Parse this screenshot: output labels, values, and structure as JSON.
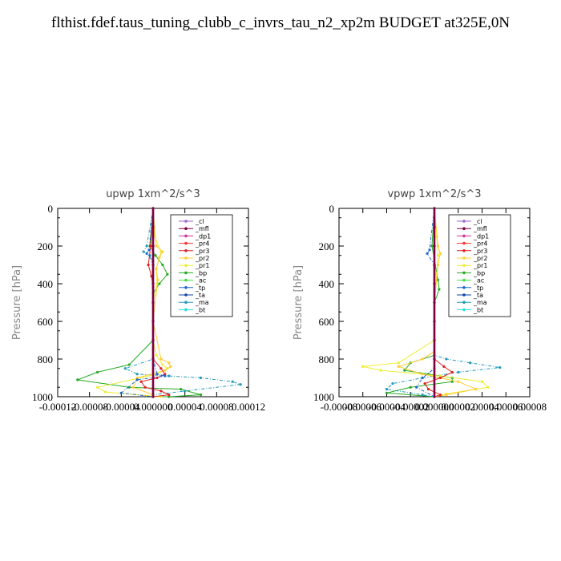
{
  "title": "flthist.fdef.taus_tuning_clubb_c_invrs_tau_n2_xp2m  BUDGET at325E,0N",
  "legend_labels": [
    "_cl",
    "_mfl",
    "_dp1",
    "_pr4",
    "_pr3",
    "_pr2",
    "_pr1",
    "_bp",
    "_ac",
    "_tp",
    "_ta",
    "_ma",
    "_bt"
  ],
  "series_colors": {
    "_cl": "#9966cc",
    "_mfl": "#800040",
    "_dp1": "#cc3399",
    "_pr4": "#ff3333",
    "_pr3": "#dd2222",
    "_pr2": "#ffcc33",
    "_pr1": "#eeee33",
    "_bp": "#22aa22",
    "_ac": "#44dd44",
    "_tp": "#2266cc",
    "_ta": "#1144aa",
    "_ma": "#2299bb",
    "_bt": "#22dddd"
  },
  "chart_data": [
    {
      "type": "line",
      "title": "upwp   1xm^2/s^3",
      "ylabel": "Pressure [hPa]",
      "xlim": [
        -0.00012,
        0.00012
      ],
      "ylim": [
        1000,
        0
      ],
      "y_inverted": true,
      "xticks": [
        -0.00012,
        -8e-05,
        -4e-05,
        0.0,
        4e-05,
        8e-05,
        0.00012
      ],
      "xtick_labels": [
        "-0.00012",
        "-0.00008",
        "-0.00004",
        "0.000000",
        "0.00004",
        "0.00008",
        "0.00012"
      ],
      "yticks": [
        0,
        200,
        400,
        600,
        800,
        1000
      ],
      "ytick_labels": [
        "0",
        "200",
        "400",
        "600",
        "800",
        "1000"
      ],
      "legend_position": "top-right",
      "series": [
        {
          "name": "_cl",
          "x": [
            0,
            0,
            0,
            0,
            0,
            0,
            0,
            0,
            0,
            0,
            0
          ],
          "y": [
            0,
            100,
            200,
            300,
            400,
            500,
            600,
            700,
            800,
            900,
            1000
          ]
        },
        {
          "name": "_mfl",
          "x": [
            0,
            0,
            0,
            0,
            0,
            0,
            0,
            0,
            0,
            0,
            0
          ],
          "y": [
            0,
            100,
            200,
            300,
            400,
            500,
            600,
            700,
            800,
            900,
            1000
          ]
        },
        {
          "name": "_pr1",
          "x": [
            0,
            2e-06,
            1e-05,
            8e-06,
            4e-06,
            5e-06,
            0,
            0,
            4e-06,
            1.2e-05,
            1.8e-05,
            5e-06,
            -7e-05,
            -6e-05,
            1e-05,
            0
          ],
          "y": [
            0,
            150,
            230,
            260,
            320,
            400,
            500,
            700,
            780,
            830,
            850,
            880,
            950,
            975,
            1000,
            1000
          ]
        },
        {
          "name": "_pr2",
          "x": [
            0,
            4e-06,
            1.2e-05,
            8e-06,
            4e-06,
            6e-06,
            0,
            1e-05,
            2e-05,
            2.2e-05,
            1.5e-05,
            -2e-05,
            -2.5e-05,
            0,
            0
          ],
          "y": [
            0,
            200,
            230,
            260,
            320,
            380,
            600,
            800,
            820,
            840,
            860,
            900,
            950,
            990,
            1000
          ]
        },
        {
          "name": "_bp",
          "x": [
            0,
            -4e-06,
            3e-06,
            1.2e-05,
            1.8e-05,
            8e-06,
            0,
            0,
            -3e-05,
            -7e-05,
            -9.5e-05,
            -3e-05,
            3.5e-05,
            6e-05,
            2e-05,
            0
          ],
          "y": [
            0,
            200,
            250,
            300,
            350,
            400,
            450,
            700,
            830,
            870,
            910,
            950,
            960,
            990,
            1000,
            1000
          ]
        },
        {
          "name": "_ma",
          "x": [
            0,
            -8e-06,
            -1.2e-05,
            -4e-06,
            0,
            0,
            -3.5e-05,
            -2e-05,
            2e-05,
            6e-05,
            0.0001,
            0.00011,
            4e-05,
            0,
            0
          ],
          "y": [
            0,
            200,
            230,
            250,
            300,
            800,
            850,
            880,
            890,
            900,
            920,
            935,
            970,
            990,
            1000
          ]
        },
        {
          "name": "_pr3",
          "x": [
            0,
            -3e-06,
            -6e-06,
            -2e-06,
            0,
            0,
            1e-05,
            1.5e-05,
            5e-06,
            -1.5e-05,
            -1e-05,
            1e-05,
            2e-05,
            0
          ],
          "y": [
            0,
            200,
            300,
            360,
            420,
            800,
            850,
            880,
            900,
            920,
            950,
            970,
            990,
            1000
          ]
        },
        {
          "name": "_tp",
          "x": [
            0,
            -5e-06,
            -8e-06,
            0,
            0,
            5e-06,
            1.5e-05,
            -2e-05,
            -4e-05,
            0
          ],
          "y": [
            0,
            220,
            240,
            280,
            800,
            880,
            890,
            910,
            980,
            1000
          ]
        }
      ]
    },
    {
      "type": "line",
      "title": "vpwp   1xm^2/s^3",
      "ylabel": "Pressure [hPa]",
      "xlim": [
        -8e-05,
        8e-05
      ],
      "ylim": [
        1000,
        0
      ],
      "y_inverted": true,
      "xticks": [
        -8e-05,
        -6e-05,
        -4e-05,
        -2e-05,
        0.0,
        2e-05,
        4e-05,
        6e-05,
        8e-05
      ],
      "xtick_labels": [
        "-0.00008",
        "-0.00006",
        "-0.00004",
        "-0.00002",
        "0.000000",
        "0.00002",
        "0.00004",
        "0.00006",
        "0.00008"
      ],
      "yticks": [
        0,
        200,
        400,
        600,
        800,
        1000
      ],
      "ytick_labels": [
        "0",
        "200",
        "400",
        "600",
        "800",
        "1000"
      ],
      "legend_position": "top-right",
      "series": [
        {
          "name": "_cl",
          "x": [
            0,
            0,
            0,
            0,
            0,
            0,
            0,
            0,
            0,
            0,
            0
          ],
          "y": [
            0,
            100,
            200,
            300,
            400,
            500,
            600,
            700,
            800,
            900,
            1000
          ]
        },
        {
          "name": "_mfl",
          "x": [
            0,
            0,
            0,
            0,
            0,
            0,
            0,
            0,
            0,
            0,
            0
          ],
          "y": [
            0,
            100,
            200,
            300,
            400,
            500,
            600,
            700,
            800,
            900,
            1000
          ]
        },
        {
          "name": "_pr1",
          "x": [
            0,
            2e-06,
            3e-06,
            2e-06,
            0,
            0,
            -3e-05,
            -6e-05,
            -4.5e-05,
            5e-06,
            4e-05,
            4.5e-05,
            1e-05,
            0
          ],
          "y": [
            0,
            150,
            250,
            350,
            500,
            700,
            820,
            840,
            860,
            890,
            920,
            950,
            985,
            1000
          ]
        },
        {
          "name": "_pr2",
          "x": [
            0,
            3e-06,
            5e-06,
            3e-06,
            0,
            0,
            -1e-05,
            -3e-05,
            -1e-05,
            2e-05,
            3.5e-05,
            1e-05,
            0
          ],
          "y": [
            0,
            200,
            240,
            300,
            500,
            760,
            800,
            840,
            880,
            920,
            960,
            990,
            1000
          ]
        },
        {
          "name": "_bp",
          "x": [
            0,
            -2e-06,
            3e-06,
            4e-06,
            0,
            0,
            -2e-05,
            -2.5e-05,
            -5e-06,
            1.5e-05,
            1.5e-05,
            -2e-05,
            -4e-05,
            0
          ],
          "y": [
            0,
            200,
            380,
            430,
            500,
            780,
            820,
            860,
            880,
            900,
            920,
            950,
            980,
            1000
          ]
        },
        {
          "name": "_ma",
          "x": [
            0,
            0,
            1e-05,
            3e-05,
            5.5e-05,
            2e-05,
            -1e-05,
            -3.5e-05,
            -4e-05,
            -1e-05,
            0
          ],
          "y": [
            0,
            780,
            800,
            820,
            845,
            870,
            900,
            930,
            960,
            990,
            1000
          ]
        },
        {
          "name": "_pr3",
          "x": [
            0,
            0,
            8e-06,
            1.5e-05,
            5e-06,
            -8e-06,
            -5e-06,
            5e-06,
            0
          ],
          "y": [
            0,
            800,
            840,
            870,
            900,
            930,
            960,
            990,
            1000
          ]
        },
        {
          "name": "_tp",
          "x": [
            0,
            -4e-06,
            -6e-06,
            0,
            0,
            -1e-05,
            -1.5e-05,
            0
          ],
          "y": [
            0,
            220,
            240,
            300,
            850,
            900,
            950,
            1000
          ]
        }
      ]
    }
  ]
}
